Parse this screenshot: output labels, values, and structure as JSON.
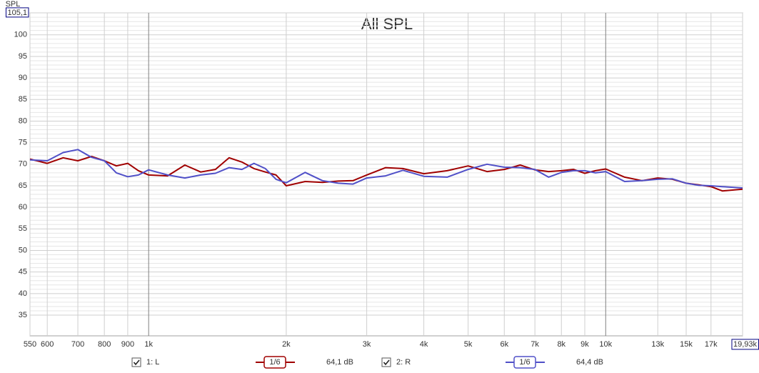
{
  "chart_data": {
    "type": "line",
    "title": "All SPL",
    "y_label": "SPL",
    "log_x": true,
    "grid": true,
    "xlim": [
      550,
      19930
    ],
    "ylim": [
      30.2,
      105.1
    ],
    "yticks": [
      35,
      40,
      45,
      50,
      55,
      60,
      65,
      70,
      75,
      80,
      85,
      90,
      95,
      100,
      {
        "value": 105.1,
        "label": "105,1"
      }
    ],
    "xticks": [
      550,
      600,
      700,
      800,
      900,
      {
        "value": 1000,
        "label": "1k"
      },
      {
        "value": 2000,
        "label": "2k"
      },
      {
        "value": 3000,
        "label": "3k"
      },
      {
        "value": 4000,
        "label": "4k"
      },
      {
        "value": 5000,
        "label": "5k"
      },
      {
        "value": 6000,
        "label": "6k"
      },
      {
        "value": 7000,
        "label": "7k"
      },
      {
        "value": 8000,
        "label": "8k"
      },
      {
        "value": 9000,
        "label": "9k"
      },
      {
        "value": 10000,
        "label": "10k"
      },
      {
        "value": 13000,
        "label": "13k"
      },
      {
        "value": 15000,
        "label": "15k"
      },
      {
        "value": 17000,
        "label": "17k"
      },
      {
        "value": 19930,
        "label": "19,93k"
      }
    ],
    "x": [
      550,
      600,
      650,
      700,
      750,
      800,
      850,
      900,
      950,
      1000,
      1100,
      1200,
      1300,
      1400,
      1500,
      1600,
      1700,
      1800,
      1900,
      2000,
      2200,
      2400,
      2600,
      2800,
      3000,
      3300,
      3600,
      4000,
      4500,
      5000,
      5500,
      6000,
      6500,
      7000,
      7500,
      8000,
      8500,
      9000,
      9500,
      10000,
      11000,
      12000,
      13000,
      14000,
      15000,
      16000,
      17000,
      18000,
      19930
    ],
    "series": [
      {
        "name": "1: L",
        "color": "#a00000",
        "smoothing": "1/6",
        "level_label": "64,1 dB",
        "values": [
          71.2,
          70.2,
          71.5,
          70.8,
          71.8,
          70.8,
          69.6,
          70.2,
          68.5,
          67.5,
          67.3,
          69.8,
          68.2,
          68.8,
          71.5,
          70.5,
          69,
          68.2,
          67.5,
          65,
          66,
          65.8,
          66.1,
          66.2,
          67.5,
          69.2,
          69,
          67.8,
          68.5,
          69.6,
          68.3,
          68.8,
          69.8,
          68.7,
          68.3,
          68.5,
          68.8,
          67.9,
          68.5,
          68.9,
          67,
          66.2,
          66.8,
          66.5,
          65.6,
          65.2,
          64.8,
          63.8,
          64.2
        ]
      },
      {
        "name": "2: R",
        "color": "#5050c8",
        "smoothing": "1/6",
        "level_label": "64,4 dB",
        "values": [
          71,
          70.8,
          72.7,
          73.4,
          71.6,
          70.8,
          68,
          67.1,
          67.5,
          68.7,
          67.5,
          66.8,
          67.5,
          67.9,
          69.2,
          68.8,
          70.2,
          69,
          66.5,
          65.7,
          68.1,
          66.2,
          65.6,
          65.4,
          66.8,
          67.3,
          68.6,
          67.2,
          67,
          68.8,
          70,
          69.3,
          69.2,
          68.8,
          67,
          68.1,
          68.5,
          68.5,
          68,
          68.3,
          66,
          66.2,
          66.5,
          66.6,
          65.6,
          65.1,
          65,
          64.8,
          64.5
        ]
      }
    ]
  }
}
